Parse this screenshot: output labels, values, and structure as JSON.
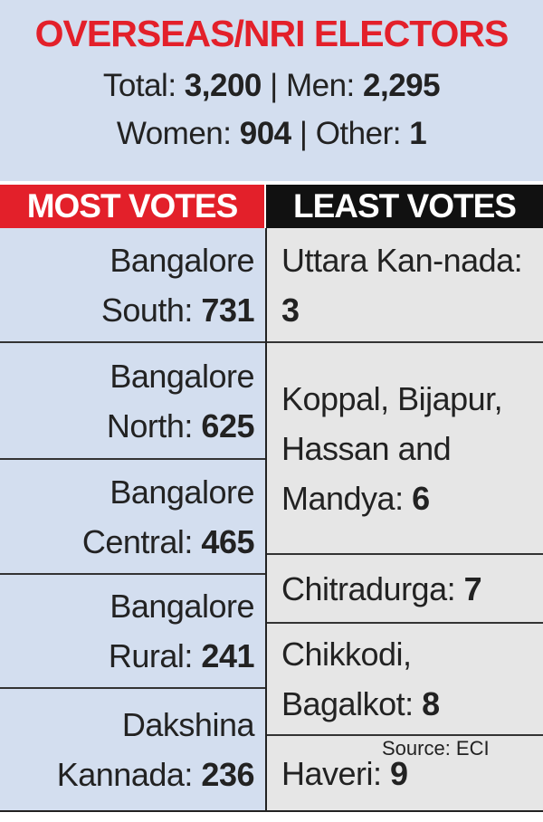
{
  "header": {
    "title": "OVERSEAS/NRI ELECTORS",
    "separator": "|",
    "stats": [
      [
        {
          "label": "Total:",
          "value": "3,200"
        },
        {
          "label": "Men:",
          "value": "2,295"
        }
      ],
      [
        {
          "label": "Women:",
          "value": "904"
        },
        {
          "label": "Other:",
          "value": "1"
        }
      ]
    ]
  },
  "table": {
    "columns": [
      "MOST VOTES",
      "LEAST VOTES"
    ],
    "most": [
      {
        "name": "Bangalore South:",
        "votes": "731"
      },
      {
        "name": "Bangalore North:",
        "votes": "625"
      },
      {
        "name": "Bangalore Central:",
        "votes": "465"
      },
      {
        "name": "Bangalore Rural:",
        "votes": "241"
      },
      {
        "name": "Dakshina Kannada:",
        "votes": "236"
      }
    ],
    "least": [
      {
        "name": "Uttara Kan-nada:",
        "votes": "3"
      },
      {
        "name": "Koppal, Bijapur, Hassan and Mandya:",
        "votes": "6"
      },
      {
        "name": "Chitradurga:",
        "votes": "7"
      },
      {
        "name": "Chikkodi, Bagalkot:",
        "votes": "8"
      },
      {
        "name": "Haveri:",
        "votes": "9"
      }
    ]
  },
  "source": "Source: ECI"
}
